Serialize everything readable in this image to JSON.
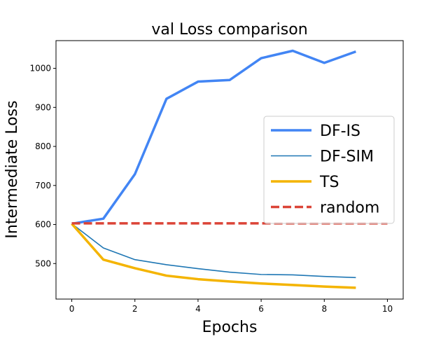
{
  "chart_data": {
    "type": "line",
    "title": "val Loss comparison",
    "xlabel": "Epochs",
    "ylabel": "Intermediate Loss",
    "xlim": [
      -0.5,
      10.5
    ],
    "ylim": [
      409,
      1071
    ],
    "xticks": [
      0,
      2,
      4,
      6,
      8,
      10
    ],
    "yticks": [
      500,
      600,
      700,
      800,
      900,
      1000
    ],
    "grid": false,
    "legend_position": "center-right",
    "series": [
      {
        "name": "DF-IS",
        "color": "#4285F4",
        "style": "solid",
        "weight": "thick",
        "x": [
          0,
          1,
          2,
          3,
          4,
          5,
          6,
          7,
          8,
          9
        ],
        "y": [
          602,
          615,
          729,
          922,
          966,
          970,
          1026,
          1045,
          1014,
          1043
        ]
      },
      {
        "name": "DF-SIM",
        "color": "#1F77B4",
        "style": "solid",
        "weight": "thin",
        "x": [
          0,
          1,
          2,
          3,
          4,
          5,
          6,
          7,
          8,
          9
        ],
        "y": [
          602,
          540,
          510,
          497,
          487,
          478,
          472,
          471,
          467,
          464
        ]
      },
      {
        "name": "TS",
        "color": "#F4B400",
        "style": "solid",
        "weight": "thick",
        "x": [
          0,
          1,
          2,
          3,
          4,
          5,
          6,
          7,
          8,
          9
        ],
        "y": [
          602,
          510,
          488,
          469,
          460,
          454,
          449,
          445,
          441,
          438
        ]
      },
      {
        "name": "random",
        "color": "#DB4437",
        "style": "dashed",
        "weight": "thick",
        "x": [
          0,
          10
        ],
        "y": [
          603,
          603
        ]
      }
    ]
  }
}
